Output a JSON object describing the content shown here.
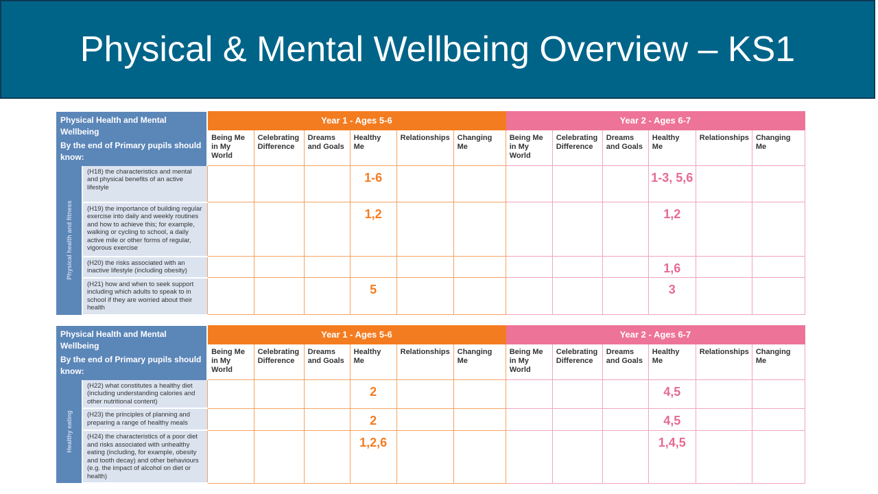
{
  "title": "Physical & Mental Wellbeing Overview – KS1",
  "header": {
    "heading": "Physical Health and Mental Wellbeing",
    "subheading": "By the end of Primary pupils should know:",
    "year1": "Year 1 - Ages 5-6",
    "year2": "Year 2 - Ages 6-7",
    "columns": [
      "Being Me in My World",
      "Celebrating Difference",
      "Dreams and Goals",
      "Healthy Me",
      "Relationships",
      "Changing Me"
    ]
  },
  "colors": {
    "title_bg": "#006489",
    "header_blue": "#5b86b8",
    "year1_orange": "#f47c20",
    "year2_pink": "#ee7399",
    "statement_bg": "#dbe3ef"
  },
  "tables": [
    {
      "section": "Physical health and fitness",
      "rows": [
        {
          "statement": "(H18) the characteristics and mental and physical benefits of an active lifestyle",
          "y1": [
            "",
            "",
            "",
            "1-6",
            "",
            ""
          ],
          "y2": [
            "",
            "",
            "",
            "1-3, 5,6",
            "",
            ""
          ]
        },
        {
          "statement": "(H19) the importance of building regular exercise into daily and weekly routines and how to achieve this; for example, walking or cycling to school, a daily active mile or other forms of regular, vigorous exercise",
          "y1": [
            "",
            "",
            "",
            "1,2",
            "",
            ""
          ],
          "y2": [
            "",
            "",
            "",
            "1,2",
            "",
            ""
          ]
        },
        {
          "statement": "(H20) the risks associated with an inactive lifestyle (including obesity)",
          "y1": [
            "",
            "",
            "",
            "",
            "",
            ""
          ],
          "y2": [
            "",
            "",
            "",
            "1,6",
            "",
            ""
          ]
        },
        {
          "statement": "(H21) how and when to seek support including which adults to speak to in school if they are worried about their health",
          "y1": [
            "",
            "",
            "",
            "5",
            "",
            ""
          ],
          "y2": [
            "",
            "",
            "",
            "3",
            "",
            ""
          ]
        }
      ]
    },
    {
      "section": "Healthy eating",
      "rows": [
        {
          "statement": "(H22) what constitutes a healthy diet (including understanding calories and other nutritional content)",
          "y1": [
            "",
            "",
            "",
            "2",
            "",
            ""
          ],
          "y2": [
            "",
            "",
            "",
            "4,5",
            "",
            ""
          ]
        },
        {
          "statement": "(H23) the principles of planning and preparing a range of healthy meals",
          "y1": [
            "",
            "",
            "",
            "2",
            "",
            ""
          ],
          "y2": [
            "",
            "",
            "",
            "4,5",
            "",
            ""
          ]
        },
        {
          "statement": "(H24) the characteristics of a poor diet and risks associated with unhealthy eating (including, for example, obesity and tooth decay) and other behaviours (e.g. the impact of alcohol on diet or health)",
          "y1": [
            "",
            "",
            "",
            "1,2,6",
            "",
            ""
          ],
          "y2": [
            "",
            "",
            "",
            "1,4,5",
            "",
            ""
          ]
        }
      ]
    }
  ]
}
